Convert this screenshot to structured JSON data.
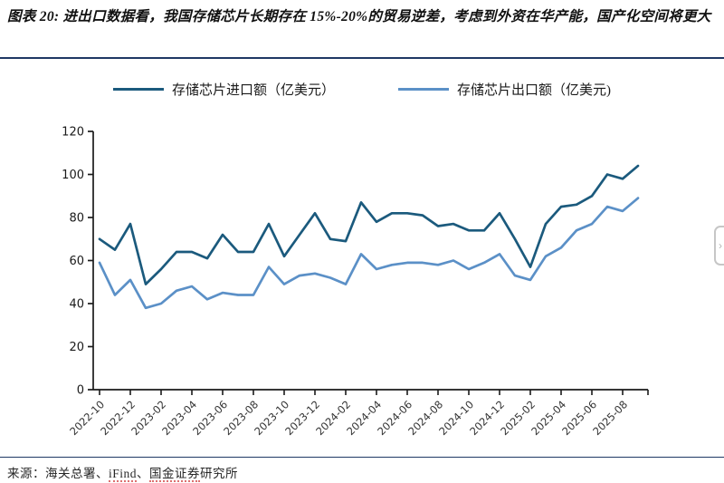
{
  "figure": {
    "title": "图表 20: 进出口数据看，我国存储芯片长期存在 15%-20%的贸易逆差，考虑到外资在华产能，国产化空间将更大",
    "divider_color": "#1f3864",
    "source": {
      "prefix": "来源：海关总署、",
      "ifind": "iFind",
      "separator": "、",
      "org": "国金证券",
      "suffix": "研究所"
    },
    "edge_button_glyph": "›"
  },
  "chart_data": {
    "type": "line",
    "title": "",
    "xlabel": "",
    "ylabel": "",
    "ylim": [
      0,
      120
    ],
    "yticks": [
      0,
      20,
      40,
      60,
      80,
      100,
      120
    ],
    "grid": false,
    "legend_position": "top",
    "x": [
      "2022-10",
      "2022-11",
      "2022-12",
      "2023-01",
      "2023-02",
      "2023-03",
      "2023-04",
      "2023-05",
      "2023-06",
      "2023-07",
      "2023-08",
      "2023-09",
      "2023-10",
      "2023-11",
      "2023-12",
      "2024-01",
      "2024-02",
      "2024-03",
      "2024-04",
      "2024-05",
      "2024-06",
      "2024-07",
      "2024-08",
      "2024-09",
      "2024-10",
      "2024-11",
      "2024-12",
      "2025-01",
      "2025-02",
      "2025-03",
      "2025-04",
      "2025-05",
      "2025-06",
      "2025-07",
      "2025-08",
      "2025-09"
    ],
    "xtick_labels": [
      "2022-10",
      "2022-12",
      "2023-02",
      "2023-04",
      "2023-06",
      "2023-08",
      "2023-10",
      "2023-12",
      "2024-02",
      "2024-04",
      "2024-06",
      "2024-08",
      "2024-10",
      "2024-12",
      "2025-02",
      "2025-04",
      "2025-06",
      "2025-08"
    ],
    "series": [
      {
        "name": "存储芯片进口额（亿美元）",
        "color": "#1b5a7d",
        "values": [
          70,
          65,
          77,
          49,
          56,
          64,
          64,
          61,
          72,
          64,
          64,
          77,
          62,
          72,
          82,
          70,
          69,
          87,
          78,
          82,
          82,
          81,
          76,
          77,
          74,
          74,
          82,
          70,
          57,
          77,
          85,
          86,
          90,
          100,
          98,
          104
        ]
      },
      {
        "name": "存储芯片出口额（亿美元)",
        "color": "#5b90c7",
        "values": [
          59,
          44,
          51,
          38,
          40,
          46,
          48,
          42,
          45,
          44,
          44,
          57,
          49,
          53,
          54,
          52,
          49,
          63,
          56,
          58,
          59,
          59,
          58,
          60,
          56,
          59,
          63,
          53,
          51,
          62,
          66,
          74,
          77,
          85,
          83,
          89
        ]
      }
    ],
    "axis_color": "#1a1a1a",
    "tick_label_color": "#333333"
  }
}
